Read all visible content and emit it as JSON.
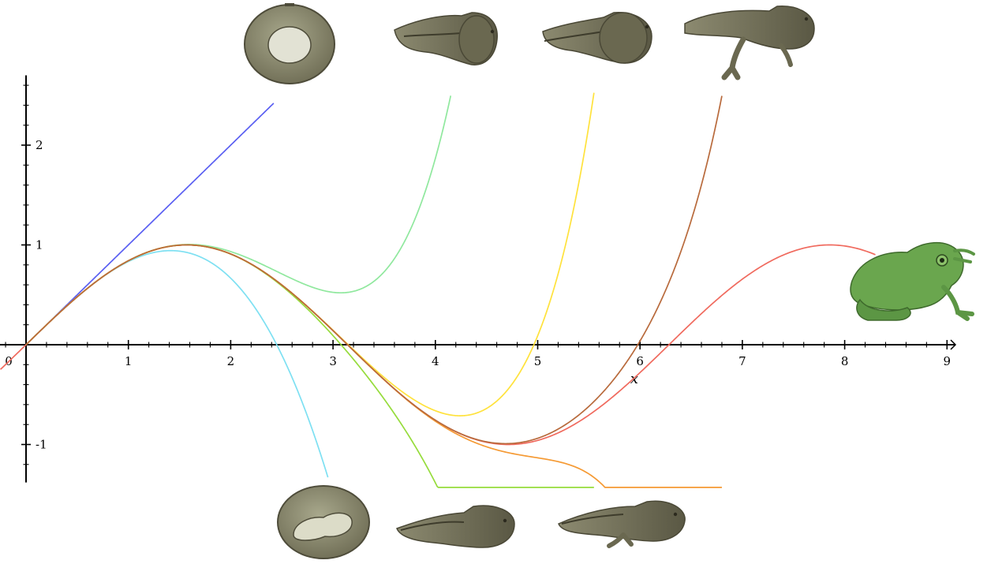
{
  "chart_data": {
    "type": "line",
    "title": "",
    "xlabel": "x",
    "ylabel": "",
    "xlim": [
      -0.25,
      9.1
    ],
    "ylim": [
      -1.38,
      2.7
    ],
    "x_ticks": [
      0,
      1,
      2,
      3,
      4,
      5,
      6,
      7,
      8,
      9
    ],
    "x_tick_labels": [
      "0",
      "1",
      "2",
      "3",
      "4",
      "5",
      "6",
      "7",
      "8",
      "9"
    ],
    "y_ticks": [
      -1,
      1,
      2
    ],
    "y_tick_labels": [
      "-1",
      "1",
      "2"
    ],
    "grid": false,
    "legend": "none",
    "series": [
      {
        "color": "#f06a5e",
        "degree": 0,
        "x_range": [
          -0.25,
          8.3
        ]
      },
      {
        "color": "#5a5ff2",
        "degree": 1,
        "x_range": [
          0,
          2.42
        ]
      },
      {
        "color": "#7ee0f2",
        "degree": 3,
        "x_range": [
          0,
          2.95
        ]
      },
      {
        "color": "#90e89e",
        "degree": 5,
        "x_range": [
          0,
          4.15
        ]
      },
      {
        "color": "#96dc3c",
        "degree": 7,
        "x_range": [
          0,
          5.55
        ]
      },
      {
        "color": "#ffe23c",
        "degree": 9,
        "x_range": [
          0,
          5.55
        ]
      },
      {
        "color": "#f59a34",
        "degree": 11,
        "x_range": [
          0,
          6.8
        ]
      },
      {
        "color": "#b86a3c",
        "degree": 13,
        "x_range": [
          0,
          6.8
        ]
      }
    ],
    "illustrations": {
      "top_row": [
        "egg-icon",
        "tadpole-icon",
        "tadpole-icon",
        "tadpole-with-legs-icon"
      ],
      "bottom_row": [
        "embryo-egg-icon",
        "tadpole-icon",
        "tadpole-with-legs-icon"
      ],
      "end": "frog-icon"
    }
  }
}
